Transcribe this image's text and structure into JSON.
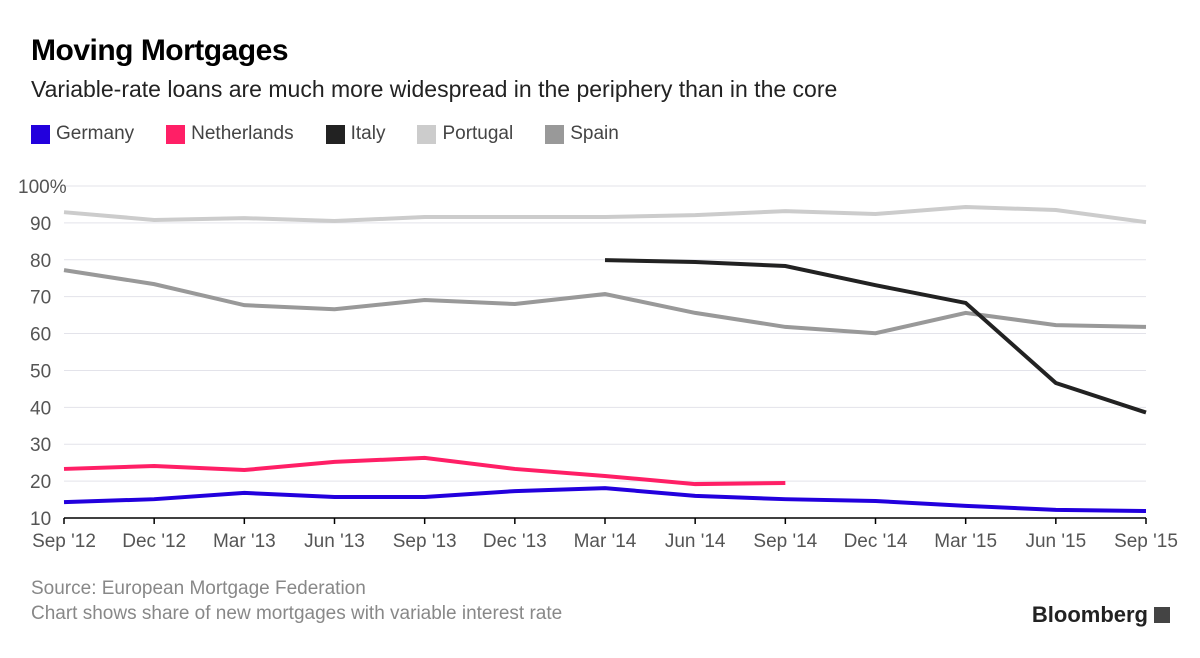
{
  "header": {
    "title": "Moving Mortgages",
    "subtitle": "Variable-rate loans are much more widespread in the periphery than in the core"
  },
  "footer": {
    "source": "Source: European Mortgage Federation",
    "note": "Chart shows share of new mortgages with variable interest rate",
    "logo": "Bloomberg"
  },
  "chart_data": {
    "type": "line",
    "title": "Moving Mortgages",
    "subtitle": "Variable-rate loans are much more widespread in the periphery than in the core",
    "categories": [
      "Sep '12",
      "Dec '12",
      "Mar '13",
      "Jun '13",
      "Sep '13",
      "Dec '13",
      "Mar '14",
      "Jun '14",
      "Sep '14",
      "Dec '14",
      "Mar '15",
      "Jun '15",
      "Sep '15"
    ],
    "ylim": [
      10,
      100
    ],
    "yticks": [
      10,
      20,
      30,
      40,
      50,
      60,
      70,
      80,
      90,
      100
    ],
    "ytick_labels": [
      "10",
      "20",
      "30",
      "40",
      "50",
      "60",
      "70",
      "80",
      "90",
      "100%"
    ],
    "grid": true,
    "legend": "top-left",
    "series": [
      {
        "name": "Germany",
        "color": "#2200dd",
        "values": [
          14.3,
          15.1,
          16.8,
          15.7,
          15.7,
          17.3,
          18.1,
          16.0,
          15.1,
          14.6,
          13.3,
          12.2,
          11.9
        ]
      },
      {
        "name": "Netherlands",
        "color": "#ff1f66",
        "values": [
          23.3,
          24.1,
          23.0,
          25.2,
          26.3,
          23.3,
          21.4,
          19.2,
          19.5,
          null,
          null,
          null,
          null
        ]
      },
      {
        "name": "Italy",
        "color": "#222222",
        "values": [
          null,
          null,
          null,
          null,
          null,
          null,
          79.9,
          79.4,
          78.3,
          73.1,
          68.3,
          46.6,
          38.6
        ]
      },
      {
        "name": "Portugal",
        "color": "#cccccc",
        "values": [
          92.9,
          90.8,
          91.3,
          90.5,
          91.6,
          91.6,
          91.6,
          92.1,
          93.2,
          92.4,
          94.3,
          93.5,
          90.2
        ]
      },
      {
        "name": "Spain",
        "color": "#999999",
        "values": [
          77.2,
          73.4,
          67.7,
          66.6,
          69.1,
          68.0,
          70.7,
          65.6,
          61.8,
          60.1,
          65.6,
          62.3,
          61.8
        ]
      }
    ]
  }
}
